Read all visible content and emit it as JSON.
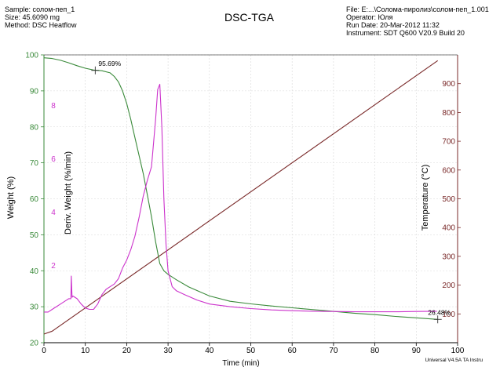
{
  "header": {
    "left": [
      "Sample: солом-пеп_1",
      "Size:  45.6090 mg",
      "Method: DSC Heatflow"
    ],
    "title": "DSC-TGA",
    "right": [
      "File: E:...\\Солома-пиролиз\\солом-пеп_1.001",
      "Operator: Юля",
      "Run Date: 20-Mar-2012 11:32",
      "Instrument: SDT Q600 V20.9 Build 20"
    ]
  },
  "footer": "Universal V4.5A TA Instru",
  "colors": {
    "weight": "#3a8a3a",
    "deriv": "#cc33cc",
    "temperature": "#7a2a2a",
    "axis": "#000000"
  },
  "chart_data": {
    "type": "line",
    "grid": true,
    "x_axis": {
      "label": "Time (min)",
      "range": [
        0,
        100
      ],
      "ticks": [
        0,
        10,
        20,
        30,
        40,
        50,
        60,
        70,
        80,
        90,
        100
      ]
    },
    "y_left": {
      "label": "Weight (%)",
      "range": [
        20,
        100
      ],
      "ticks": [
        20,
        30,
        40,
        50,
        60,
        70,
        80,
        90,
        100
      ]
    },
    "y_left_inner": {
      "label": "Deriv. Weight (%/min)",
      "range": [
        -0.9,
        9.9
      ],
      "ticks": [
        2,
        4,
        6,
        8
      ]
    },
    "y_right": {
      "label": "Temperature (°C)",
      "range": [
        0,
        1000
      ],
      "ticks": [
        100,
        200,
        300,
        400,
        500,
        600,
        700,
        800,
        900
      ]
    },
    "annotations": [
      {
        "text": "95.69%",
        "x": 12.4,
        "y": 95.69,
        "axis": "weight"
      },
      {
        "text": "26.48%",
        "x": 95.2,
        "y": 26.48,
        "axis": "weight"
      }
    ],
    "series": [
      {
        "axis": "weight",
        "x": [
          0,
          2,
          4,
          6,
          8,
          10,
          12,
          14,
          16,
          17,
          18,
          19,
          20,
          21,
          22,
          23,
          24,
          25,
          26,
          27,
          28,
          29,
          30,
          32,
          35,
          40,
          45,
          50,
          55,
          60,
          65,
          70,
          75,
          80,
          85,
          90,
          95.2
        ],
        "y": [
          99.2,
          99,
          98.5,
          97.8,
          97,
          96.3,
          95.8,
          95.6,
          95,
          94,
          92.5,
          90,
          86.5,
          82,
          77,
          72,
          67,
          61,
          55,
          48,
          42,
          40,
          39,
          37.5,
          35.5,
          33,
          31.5,
          30.8,
          30.2,
          29.7,
          29.2,
          28.7,
          28.2,
          27.8,
          27.3,
          26.9,
          26.48
        ]
      },
      {
        "axis": "deriv",
        "x": [
          0,
          1,
          2,
          3,
          4,
          5,
          6,
          6.5,
          6.6,
          6.8,
          7,
          8,
          9,
          10,
          11,
          12,
          13,
          14,
          15,
          16,
          17,
          18,
          19,
          20,
          21,
          22,
          23,
          24,
          25,
          26,
          27,
          27.5,
          28,
          28.5,
          29,
          29.5,
          30,
          31,
          32,
          34,
          37,
          40,
          45,
          50,
          55,
          60,
          65,
          70,
          75,
          80,
          85,
          90,
          95
        ],
        "y": [
          0.25,
          0.25,
          0.35,
          0.45,
          0.55,
          0.65,
          0.75,
          0.75,
          1.6,
          0.8,
          0.85,
          0.75,
          0.55,
          0.4,
          0.35,
          0.35,
          0.55,
          0.9,
          1.1,
          1.2,
          1.3,
          1.5,
          1.9,
          2.2,
          2.6,
          3.1,
          3.8,
          4.6,
          5.2,
          5.7,
          7.5,
          8.6,
          8.8,
          7.2,
          4.5,
          2.8,
          1.8,
          1.2,
          1.05,
          0.9,
          0.7,
          0.55,
          0.45,
          0.38,
          0.33,
          0.3,
          0.28,
          0.27,
          0.26,
          0.26,
          0.26,
          0.27,
          0.28
        ]
      },
      {
        "axis": "temperature",
        "x": [
          0,
          2,
          95.2
        ],
        "y": [
          30,
          40,
          980
        ]
      }
    ]
  }
}
